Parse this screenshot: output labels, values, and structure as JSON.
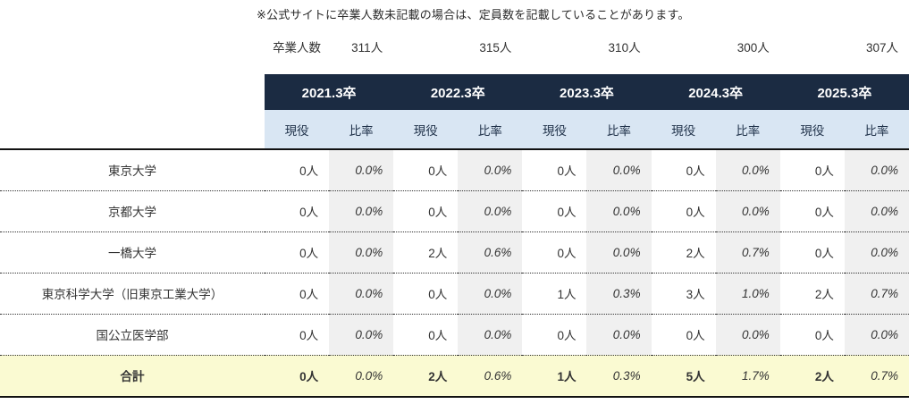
{
  "note": "※公式サイトに卒業人数未記載の場合は、定員数を記載していることがあります。",
  "grad_row": {
    "label": "卒業人数",
    "counts": [
      "311人",
      "315人",
      "310人",
      "300人",
      "307人"
    ]
  },
  "years": [
    "2021.3卒",
    "2022.3卒",
    "2023.3卒",
    "2024.3卒",
    "2025.3卒"
  ],
  "labels": {
    "current": "現役",
    "ratio": "比率"
  },
  "rows": [
    {
      "name": "東京大学",
      "values": [
        "0人",
        "0.0%",
        "0人",
        "0.0%",
        "0人",
        "0.0%",
        "0人",
        "0.0%",
        "0人",
        "0.0%"
      ]
    },
    {
      "name": "京都大学",
      "values": [
        "0人",
        "0.0%",
        "0人",
        "0.0%",
        "0人",
        "0.0%",
        "0人",
        "0.0%",
        "0人",
        "0.0%"
      ]
    },
    {
      "name": "一橋大学",
      "values": [
        "0人",
        "0.0%",
        "2人",
        "0.6%",
        "0人",
        "0.0%",
        "2人",
        "0.7%",
        "0人",
        "0.0%"
      ]
    },
    {
      "name": "東京科学大学（旧東京工業大学）",
      "values": [
        "0人",
        "0.0%",
        "0人",
        "0.0%",
        "1人",
        "0.3%",
        "3人",
        "1.0%",
        "2人",
        "0.7%"
      ]
    },
    {
      "name": "国公立医学部",
      "values": [
        "0人",
        "0.0%",
        "0人",
        "0.0%",
        "0人",
        "0.0%",
        "0人",
        "0.0%",
        "0人",
        "0.0%"
      ]
    }
  ],
  "total": {
    "name": "合計",
    "values": [
      "0人",
      "0.0%",
      "2人",
      "0.6%",
      "1人",
      "0.3%",
      "5人",
      "1.7%",
      "2人",
      "0.7%"
    ]
  },
  "colors": {
    "header_navy": "#1b2b42",
    "subheader_blue": "#d9e6f3",
    "ratio_column_gray": "#f0f0f0",
    "total_row_yellow": "#fafad2"
  }
}
